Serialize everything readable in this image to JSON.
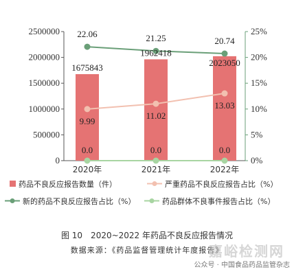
{
  "chart_data": {
    "type": "bar",
    "categories": [
      "2020年",
      "2021年",
      "2022年"
    ],
    "series": [
      {
        "name": "药品不良反应报告数量（件）",
        "type": "bar",
        "axis": "left",
        "values": [
          1675843,
          1962418,
          2023050
        ],
        "labels": [
          "1675843",
          "1962418",
          "2023050"
        ],
        "color": "#e57373"
      },
      {
        "name": "严重药品不良反应报告占比（%）",
        "type": "line",
        "axis": "right",
        "values": [
          9.99,
          11.02,
          13.03
        ],
        "labels": [
          "9.99",
          "11.02",
          "13.03"
        ],
        "color": "#f2c0b0"
      },
      {
        "name": "新的药品不良反应报告占比（%）",
        "type": "line",
        "axis": "right",
        "values": [
          22.06,
          21.25,
          20.74
        ],
        "labels": [
          "22.06",
          "21.25",
          "20.74"
        ],
        "color": "#6a9f78"
      },
      {
        "name": "药品群体不良事件报告占比（%）",
        "type": "line",
        "axis": "right",
        "values": [
          0.0,
          0.0,
          0.0
        ],
        "labels": [
          "0.0",
          "0.0",
          "0.0"
        ],
        "color": "#a8d5a2"
      }
    ],
    "y_left": {
      "ylim": [
        0,
        2500000
      ],
      "ticks": [
        "0",
        "500000",
        "1000000",
        "1500000",
        "2000000",
        "2500000"
      ],
      "tick_values": [
        0,
        500000,
        1000000,
        1500000,
        2000000,
        2500000
      ]
    },
    "y_right": {
      "ylim": [
        0,
        25
      ],
      "ticks": [
        "0%",
        "5%",
        "10%",
        "15%",
        "20%",
        "25%"
      ],
      "tick_values": [
        0,
        5,
        10,
        15,
        20,
        25
      ]
    },
    "legend_position": "bottom",
    "grid": false
  },
  "caption": "图 10　2020~2022 年药品不良反应报告情况",
  "source": "数据来源：《药品监督管理统计年度报告》",
  "watermark": {
    "main": "嘉峪检测网",
    "sub": "公众号 · 中国食品药品监管杂志"
  }
}
